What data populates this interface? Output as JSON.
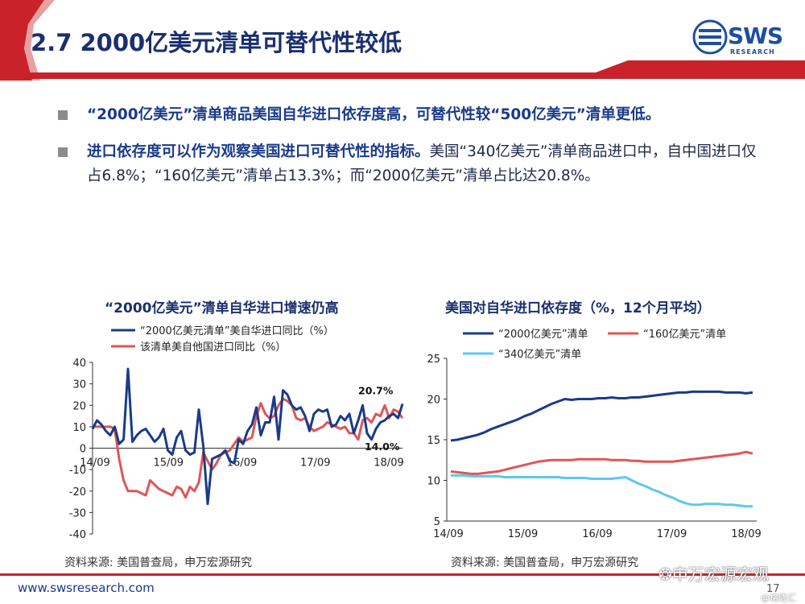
{
  "slide": {
    "title": "2.7 2000亿美元清单可替代性较低",
    "logo_text": "SWS",
    "logo_sub": "RESEARCH",
    "footer_url": "www.swsresearch.com",
    "page_number": "17",
    "watermark": "申万宏源宏观",
    "watermark2": "@格隆汇"
  },
  "bullets": [
    {
      "bold": "“2000亿美元”清单商品美国自华进口依存度高，可替代性较“500亿美元”清单更低。",
      "normal": ""
    },
    {
      "bold": "进口依存度可以作为观察美国进口可替代性的指标。",
      "normal": "美国“340亿美元”清单商品进口中，自中国进口仅占6.8%；“160亿美元”清单占13.3%；而“2000亿美元”清单占比达20.8%。"
    }
  ],
  "colors": {
    "navy": "#1a3a8a",
    "red": "#e05555",
    "lightblue": "#5cc8f0",
    "brand_red": "#c9222a"
  },
  "chart_data": [
    {
      "type": "line",
      "title": "“2000亿美元”清单自华进口增速仍高",
      "source": "资料来源: 美国普查局，申万宏源研究",
      "ylim": [
        -40,
        40
      ],
      "yticks": [
        "40",
        "30",
        "20",
        "10",
        "0",
        "-10",
        "-20",
        "-30",
        "-40"
      ],
      "xticks": [
        "14/09",
        "15/09",
        "16/09",
        "17/09",
        "18/09"
      ],
      "annotations": [
        "20.7%",
        "14.0%"
      ],
      "series": [
        {
          "name": "“2000亿美元清单”美自华进口同比（%）",
          "color": "#1a3a8a",
          "values": [
            9,
            13,
            11,
            8,
            6,
            10,
            2,
            4,
            37,
            3,
            6,
            8,
            9,
            6,
            3,
            5,
            9,
            -1,
            -3,
            5,
            8,
            -1,
            -3,
            -2,
            18,
            1,
            -26,
            -5,
            -4,
            -3,
            -1,
            -6,
            -7,
            4,
            2,
            8,
            11,
            19,
            6,
            12,
            12,
            24,
            4,
            27,
            25,
            20,
            18,
            19,
            15,
            8,
            16,
            18,
            17,
            18,
            10,
            11,
            15,
            13,
            16,
            7,
            13,
            20,
            7,
            4,
            9,
            12,
            13,
            15,
            16,
            14,
            20.7
          ]
        },
        {
          "name": "该清单美自他国进口同比（%）",
          "color": "#e05555",
          "values": [
            10,
            10,
            10,
            10,
            10,
            9,
            -5,
            -15,
            -20,
            -20,
            -20,
            -21,
            -22,
            -15,
            -17,
            -19,
            -20,
            -21,
            -22,
            -18,
            -19,
            -23,
            -18,
            -20,
            -16,
            -2,
            -6,
            -10,
            -7,
            -3,
            -2,
            -1,
            2,
            5,
            3,
            4,
            5,
            15,
            21,
            16,
            14,
            15,
            20,
            23,
            22,
            20,
            14,
            13,
            14,
            10,
            8,
            9,
            10,
            12,
            11,
            10,
            9,
            10,
            7,
            7,
            4,
            13,
            14,
            12,
            16,
            15,
            20,
            14,
            18,
            17,
            14.0
          ]
        }
      ]
    },
    {
      "type": "line",
      "title": "美国对自华进口依存度（%，12个月平均）",
      "source": "资料来源: 美国普查局，申万宏源研究",
      "ylim": [
        5,
        25
      ],
      "yticks": [
        "25",
        "20",
        "15",
        "10",
        "5"
      ],
      "xticks": [
        "14/09",
        "15/09",
        "16/09",
        "17/09",
        "18/09"
      ],
      "series": [
        {
          "name": "“2000亿美元”清单",
          "color": "#1a3a8a",
          "values": [
            14.9,
            15.0,
            15.2,
            15.4,
            15.6,
            15.9,
            16.3,
            16.6,
            16.9,
            17.2,
            17.5,
            17.9,
            18.2,
            18.6,
            19.0,
            19.4,
            19.7,
            20.0,
            19.9,
            20.0,
            20.0,
            20.0,
            20.1,
            20.1,
            20.2,
            20.1,
            20.1,
            20.2,
            20.2,
            20.3,
            20.4,
            20.5,
            20.6,
            20.7,
            20.8,
            20.8,
            20.9,
            20.9,
            20.9,
            20.9,
            20.9,
            20.8,
            20.8,
            20.8,
            20.7,
            20.8
          ]
        },
        {
          "name": "“160亿美元”清单",
          "color": "#e05555",
          "values": [
            11.1,
            11.0,
            10.9,
            10.8,
            10.8,
            10.9,
            11.0,
            11.1,
            11.3,
            11.5,
            11.7,
            11.9,
            12.1,
            12.3,
            12.4,
            12.5,
            12.5,
            12.5,
            12.5,
            12.6,
            12.6,
            12.6,
            12.6,
            12.6,
            12.5,
            12.5,
            12.5,
            12.4,
            12.4,
            12.3,
            12.3,
            12.3,
            12.3,
            12.3,
            12.4,
            12.5,
            12.6,
            12.7,
            12.8,
            12.9,
            13.0,
            13.1,
            13.2,
            13.3,
            13.5,
            13.3
          ]
        },
        {
          "name": "“340亿美元”清单",
          "color": "#5cc8f0",
          "values": [
            10.6,
            10.6,
            10.6,
            10.5,
            10.5,
            10.5,
            10.5,
            10.5,
            10.4,
            10.4,
            10.4,
            10.4,
            10.4,
            10.4,
            10.4,
            10.4,
            10.4,
            10.3,
            10.3,
            10.3,
            10.3,
            10.2,
            10.2,
            10.2,
            10.2,
            10.3,
            10.4,
            10.0,
            9.6,
            9.3,
            8.9,
            8.6,
            8.2,
            7.9,
            7.5,
            7.2,
            7.0,
            7.0,
            7.1,
            7.1,
            7.1,
            7.0,
            7.0,
            6.9,
            6.8,
            6.8
          ]
        }
      ]
    }
  ]
}
